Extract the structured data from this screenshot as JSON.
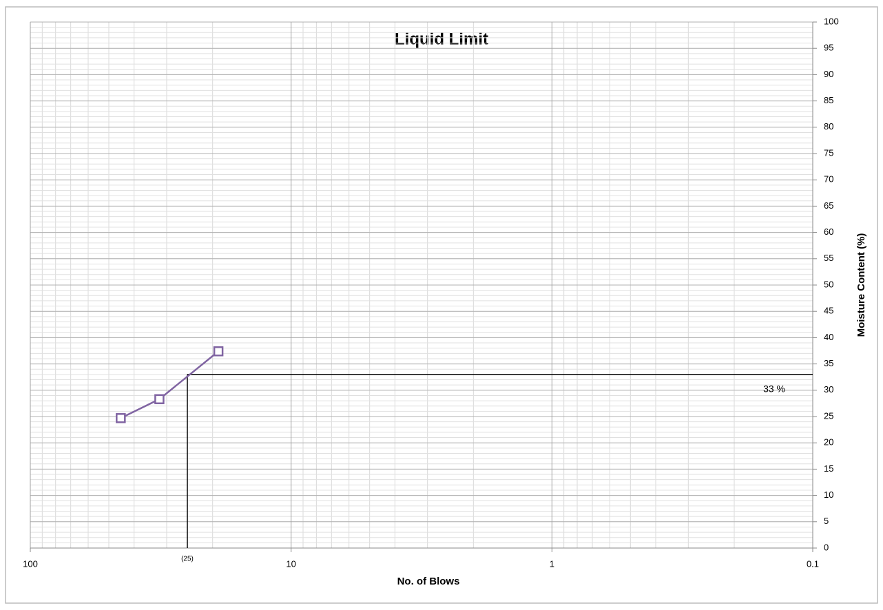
{
  "chart_data": {
    "type": "line",
    "title": "Liquid Limit",
    "x_label": "No. of Blows",
    "y_label": "Moisture Content (%)",
    "x_scale": "log",
    "x_reversed": true,
    "y_axis_side": "right",
    "grid": true,
    "xlim": [
      100,
      0.1
    ],
    "xticks": [
      100,
      10,
      1,
      0.1
    ],
    "ylim": [
      0,
      100
    ],
    "yticks": [
      0,
      5,
      10,
      15,
      20,
      25,
      30,
      35,
      40,
      45,
      50,
      55,
      60,
      65,
      70,
      75,
      80,
      85,
      90,
      95,
      100
    ],
    "series": [
      {
        "color": "#8064a2",
        "marker": "square",
        "x": [
          45,
          32,
          19
        ],
        "values": [
          24.7,
          28.3,
          37.4
        ]
      }
    ],
    "reference": {
      "x": 25,
      "x_label": "(25)",
      "y": 33,
      "y_label": "33 %",
      "color": "#000000"
    }
  }
}
